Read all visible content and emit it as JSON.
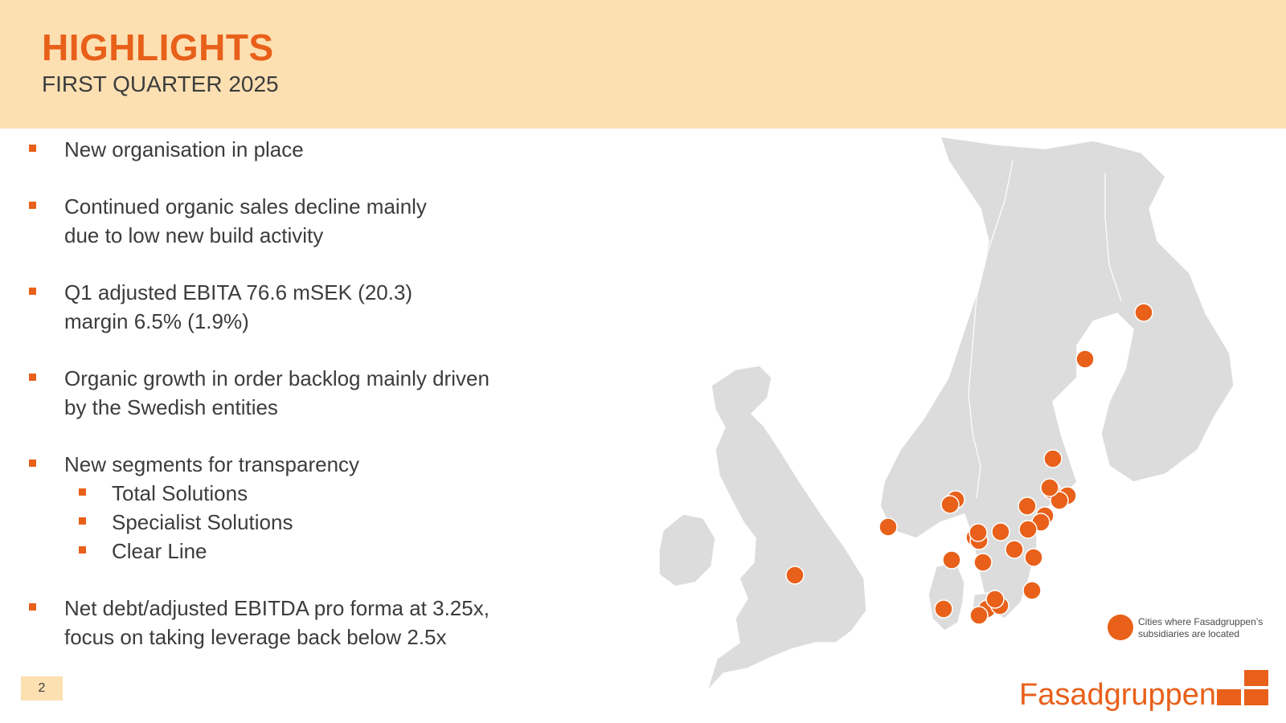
{
  "header": {
    "title": "HIGHLIGHTS",
    "subtitle": "FIRST QUARTER 2025"
  },
  "bullets": [
    {
      "line1": "New organisation in place",
      "line2": ""
    },
    {
      "line1": "Continued organic sales decline mainly",
      "line2": "due to low new build activity"
    },
    {
      "line1": "Q1 adjusted EBITA 76.6 mSEK (20.3)",
      "line2": "margin 6.5% (1.9%)"
    },
    {
      "line1": "Organic growth in order backlog mainly driven",
      "line2": "by the Swedish entities"
    },
    {
      "line1": "New segments for transparency",
      "line2": ""
    },
    {
      "line1": "Net debt/adjusted EBITDA pro forma at 3.25x,",
      "line2": "focus on taking leverage back below 2.5x"
    }
  ],
  "segments": [
    "Total Solutions",
    "Specialist Solutions",
    "Clear Line"
  ],
  "legend": {
    "line1": "Cities where Fasadgruppen’s",
    "line2": "subsidiaries are located"
  },
  "page_number": "2",
  "brand": {
    "name": "Fasadgruppen"
  },
  "colors": {
    "accent": "#e8601a",
    "header_bg": "#fde0b2",
    "land": "#dcdcdc",
    "text": "#3c3c3c"
  },
  "icons": {
    "bullet": "square-bullet-icon",
    "logo_mark": "brick-blocks-icon"
  }
}
